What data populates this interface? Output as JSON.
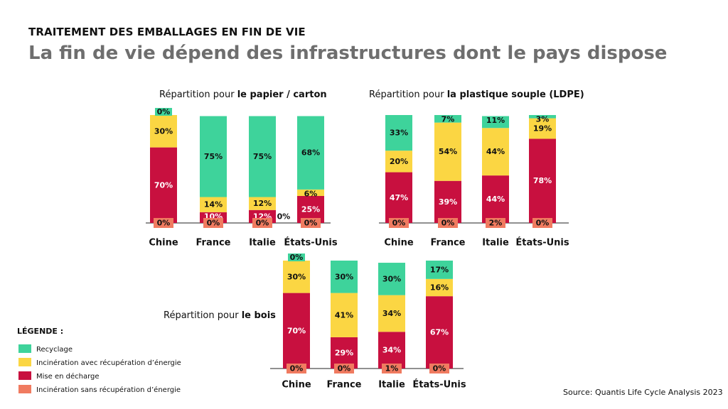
{
  "supertitle": "TRAITEMENT DES EMBALLAGES EN FIN DE VIE",
  "title": "La fin de vie dépend des infrastructures dont le pays dispose",
  "colors": {
    "recyclage": "#3ed39b",
    "incineration_recup": "#fbd643",
    "decharge": "#c8103f",
    "incineration_sans": "#f07b60"
  },
  "legend": {
    "title": "LÉGENDE :",
    "items": [
      {
        "key": "recyclage",
        "label": "Recyclage"
      },
      {
        "key": "incineration_recup",
        "label": "Incinération avec récupération d’énergie"
      },
      {
        "key": "decharge",
        "label": "Mise en décharge"
      },
      {
        "key": "incineration_sans",
        "label": "Incinération sans récupération d’énergie"
      }
    ]
  },
  "source": "Source:  Quantis Life Cycle Analysis 2023",
  "chart_data": [
    {
      "type": "bar",
      "stacked": true,
      "title_prefix": "Répartition pour ",
      "title_bold": "le papier / carton",
      "categories": [
        "Chine",
        "France",
        "Italie",
        "États-Unis"
      ],
      "series": [
        {
          "key": "decharge",
          "name": "Mise en décharge",
          "values": [
            70,
            10,
            12,
            25
          ]
        },
        {
          "key": "incineration_recup",
          "name": "Incinération avec récupération d’énergie",
          "values": [
            30,
            14,
            12,
            6
          ]
        },
        {
          "key": "recyclage",
          "name": "Recyclage",
          "values": [
            0,
            75,
            75,
            68
          ]
        },
        {
          "key": "incineration_sans",
          "name": "Incinération sans récupération d’énergie",
          "values": [
            0,
            0,
            0,
            0
          ]
        }
      ],
      "extra_labels": [
        {
          "text": "0%",
          "after_category": "Italie"
        }
      ]
    },
    {
      "type": "bar",
      "stacked": true,
      "title_prefix": "Répartition pour ",
      "title_bold": "la plastique souple (LDPE)",
      "categories": [
        "Chine",
        "France",
        "Italie",
        "États-Unis"
      ],
      "series": [
        {
          "key": "decharge",
          "name": "Mise en décharge",
          "values": [
            47,
            39,
            44,
            78
          ]
        },
        {
          "key": "incineration_recup",
          "name": "Incinération avec récupération d’énergie",
          "values": [
            20,
            54,
            44,
            19
          ]
        },
        {
          "key": "recyclage",
          "name": "Recyclage",
          "values": [
            33,
            7,
            11,
            3
          ]
        },
        {
          "key": "incineration_sans",
          "name": "Incinération sans récupération d’énergie",
          "values": [
            0,
            0,
            2,
            0
          ]
        }
      ]
    },
    {
      "type": "bar",
      "stacked": true,
      "title_prefix": "Répartition pour ",
      "title_bold": "le bois",
      "categories": [
        "Chine",
        "France",
        "Italie",
        "États-Unis"
      ],
      "series": [
        {
          "key": "decharge",
          "name": "Mise en décharge",
          "values": [
            70,
            29,
            34,
            67
          ]
        },
        {
          "key": "incineration_recup",
          "name": "Incinération avec récupération d’énergie",
          "values": [
            30,
            41,
            34,
            16
          ]
        },
        {
          "key": "recyclage",
          "name": "Recyclage",
          "values": [
            0,
            30,
            30,
            17
          ]
        },
        {
          "key": "incineration_sans",
          "name": "Incinération sans récupération d’énergie",
          "values": [
            0,
            0,
            1,
            0
          ]
        }
      ]
    }
  ]
}
